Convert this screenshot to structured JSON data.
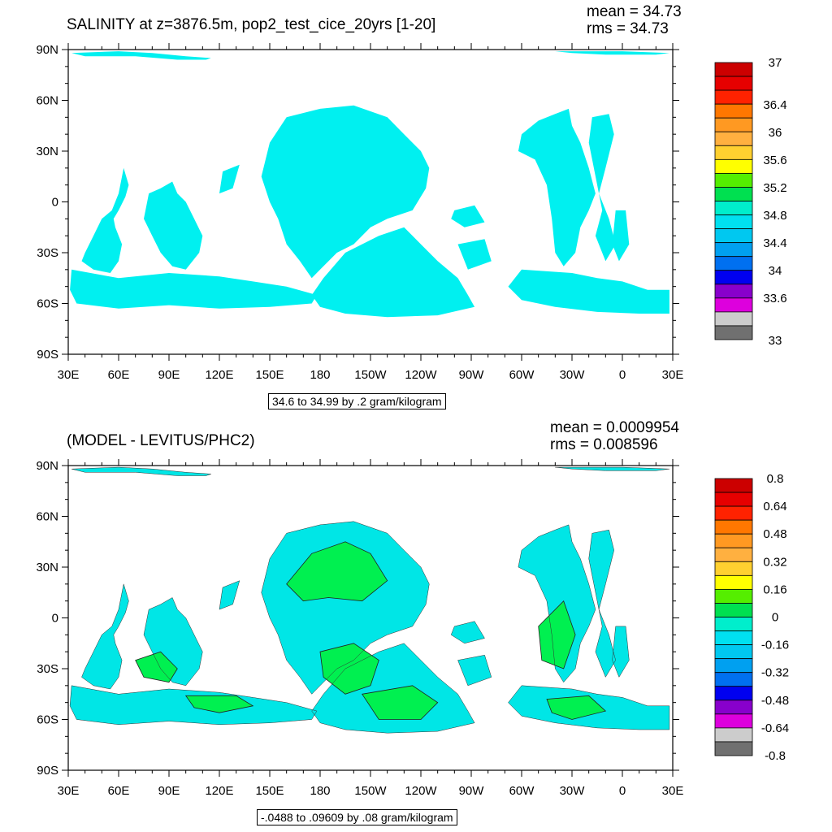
{
  "panels": [
    {
      "title": "SALINITY at z=3876.5m, pop2_test_cice_20yrs [1-20]",
      "mean": "mean = 34.73",
      "rms": "rms = 34.73",
      "info": "34.6 to 34.99 by .2 gram/kilogram",
      "y_ticks": [
        "90N",
        "60N",
        "30N",
        "0",
        "30S",
        "60S",
        "90S"
      ],
      "x_ticks": [
        "30E",
        "60E",
        "90E",
        "120E",
        "150E",
        "180",
        "150W",
        "120W",
        "90W",
        "60W",
        "30W",
        "0",
        "30E"
      ],
      "colorbar_labels": [
        "37",
        "36.4",
        "36",
        "35.6",
        "35.2",
        "34.8",
        "34.4",
        "34",
        "33.6",
        "33"
      ],
      "fill_color": "#00f0f0",
      "contours": false
    },
    {
      "title": "(MODEL - LEVITUS/PHC2)",
      "mean": "mean = 0.0009954",
      "rms": "rms = 0.008596",
      "info": "-.0488 to .09609 by .08 gram/kilogram",
      "y_ticks": [
        "90N",
        "60N",
        "30N",
        "0",
        "30S",
        "60S",
        "90S"
      ],
      "x_ticks": [
        "30E",
        "60E",
        "90E",
        "120E",
        "150E",
        "180",
        "150W",
        "120W",
        "90W",
        "60W",
        "30W",
        "0",
        "30E"
      ],
      "colorbar_labels": [
        "0.8",
        "0.64",
        "0.48",
        "0.32",
        "0.16",
        "0",
        "-0.16",
        "-0.32",
        "-0.48",
        "-0.64",
        "-0.8"
      ],
      "fill_color": "#00e6e6",
      "alt_color": "#00f050",
      "contours": true
    }
  ],
  "colorbar_colors": [
    "#cc0000",
    "#e60000",
    "#ff2200",
    "#ff7700",
    "#ff9922",
    "#ffb040",
    "#ffd030",
    "#ffff00",
    "#55ee00",
    "#00e050",
    "#00eecc",
    "#00e0f0",
    "#00c8f0",
    "#00a0f0",
    "#0070f0",
    "#0000f0",
    "#8800cc",
    "#dd00dd",
    "#cccccc",
    "#707070"
  ]
}
